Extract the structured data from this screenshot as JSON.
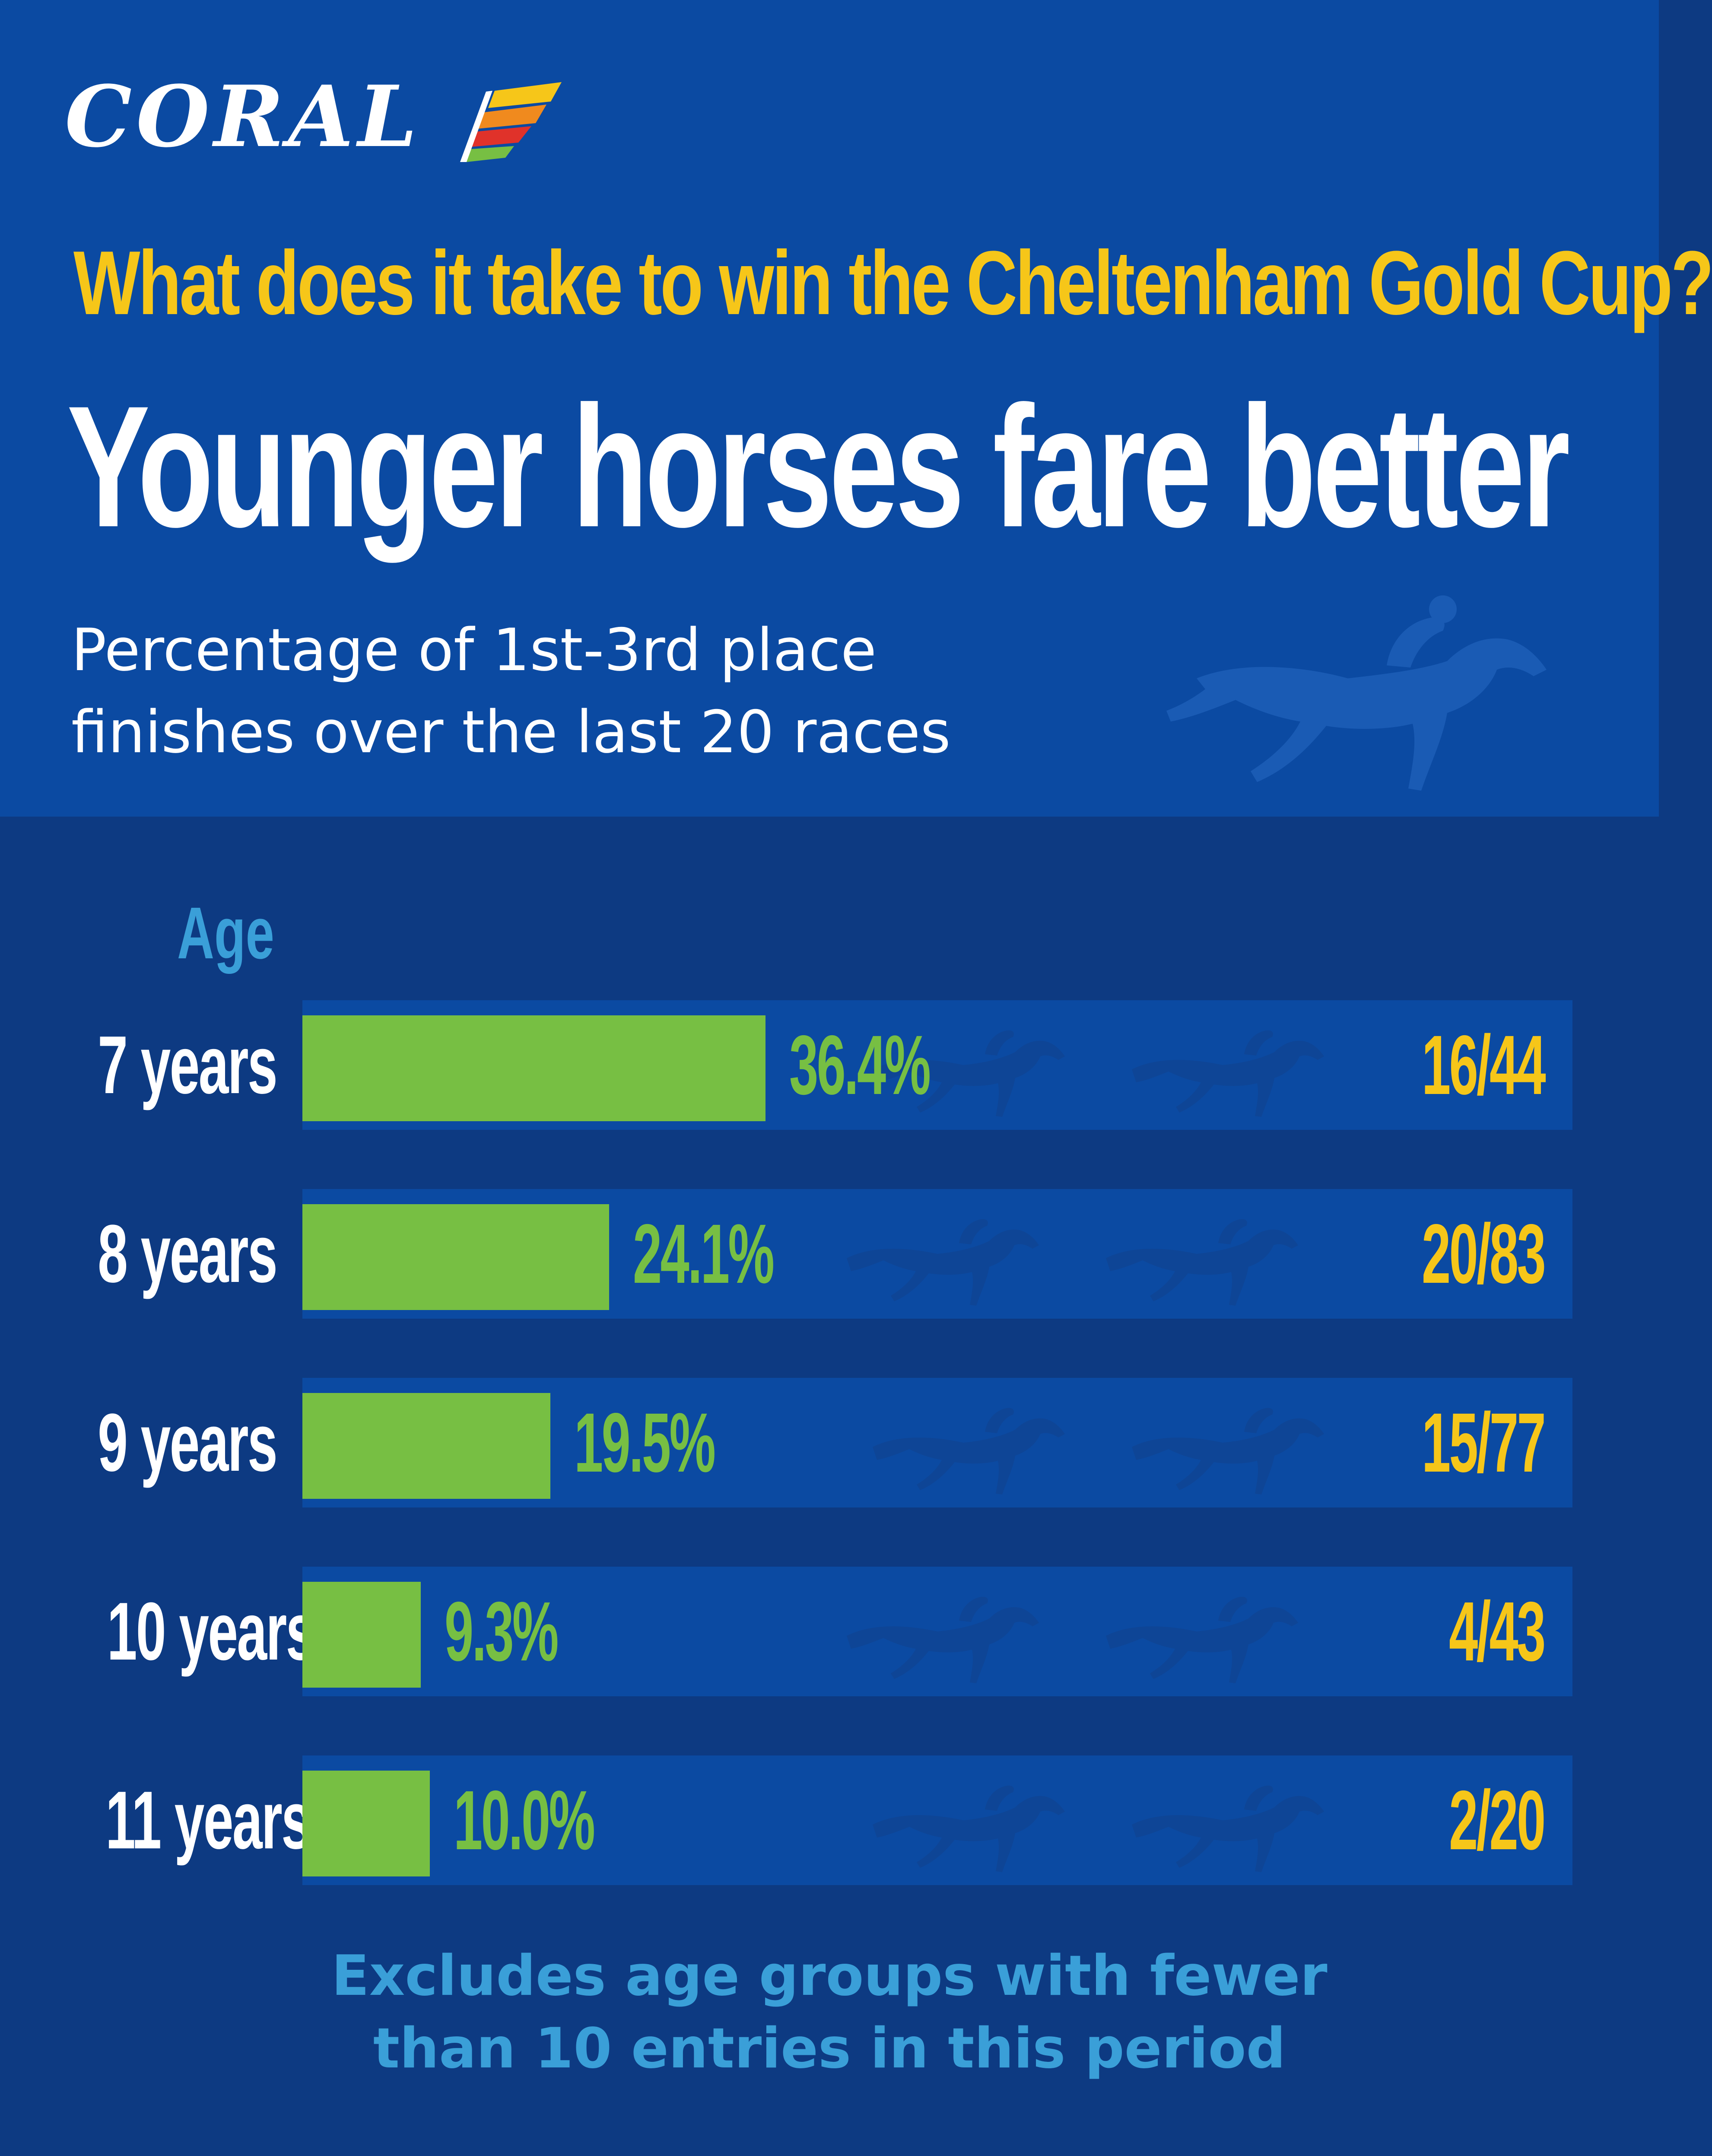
{
  "brand": {
    "name": "CORAL"
  },
  "header": {
    "title": "What does it take to win the Cheltenham Gold Cup?",
    "headline": "Younger horses fare better",
    "subtitle_line1": "Percentage of 1st-3rd place",
    "subtitle_line2": "finishes over the last 20 races"
  },
  "colors": {
    "top_background": "#0b4aa2",
    "bottom_background": "#0d3a82",
    "bar": "#77bf43",
    "ratio_text": "#f6c619",
    "accent_text": "#3a9fd8"
  },
  "chart_data": {
    "type": "bar",
    "orientation": "horizontal",
    "ylabel": "Age",
    "categories": [
      "7 years",
      "8 years",
      "9 years",
      "10 years",
      "11 years"
    ],
    "values": [
      36.4,
      24.1,
      19.5,
      9.3,
      10.0
    ],
    "value_labels": [
      "36.4%",
      "24.1%",
      "19.5%",
      "9.3%",
      "10.0%"
    ],
    "ratios": [
      "16/44",
      "20/83",
      "15/77",
      "4/43",
      "2/20"
    ],
    "xlim": [
      0,
      100
    ],
    "grid": false,
    "legend": "none"
  },
  "footnote": {
    "line1": "Excludes age groups with fewer",
    "line2": "than 10 entries in this period"
  }
}
